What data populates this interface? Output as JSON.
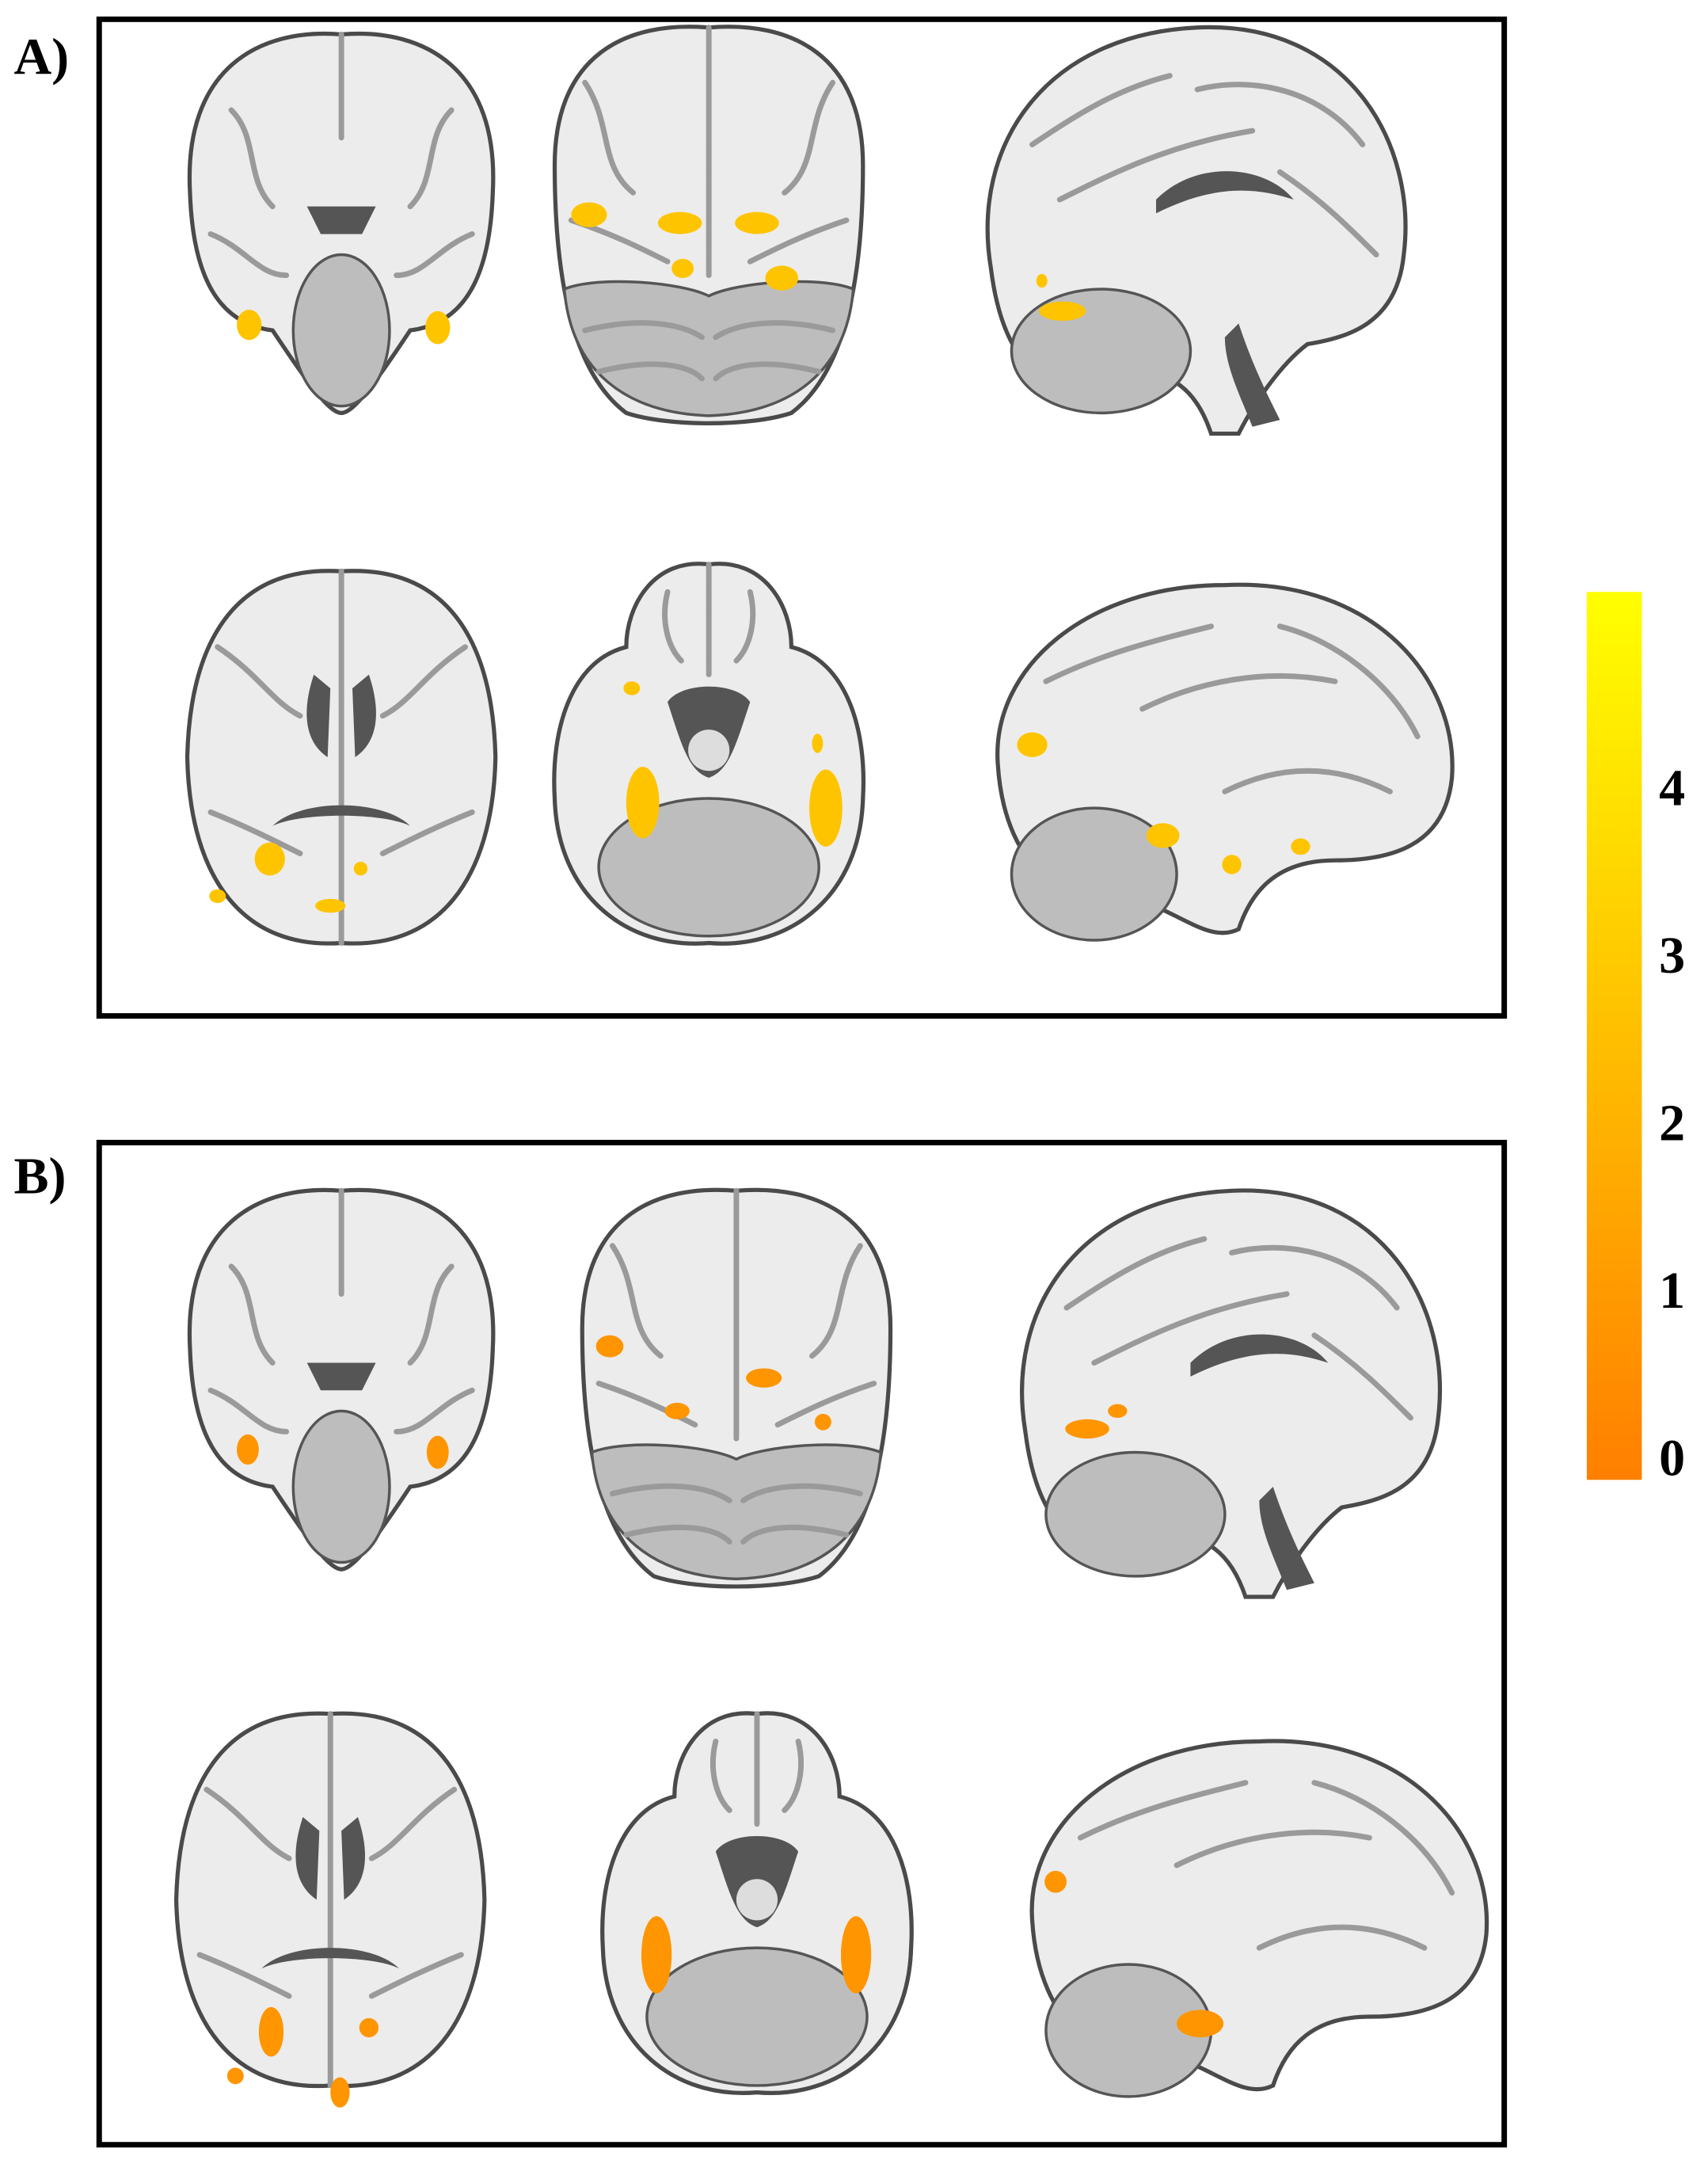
{
  "panels": [
    {
      "label": "A)"
    },
    {
      "label": "B)"
    }
  ],
  "colorbar": {
    "ticks": [
      0,
      1,
      2,
      3,
      4
    ],
    "lim": [
      -0.1,
      5.2
    ],
    "colors": [
      "#ff7f00",
      "#ffff00"
    ]
  }
}
